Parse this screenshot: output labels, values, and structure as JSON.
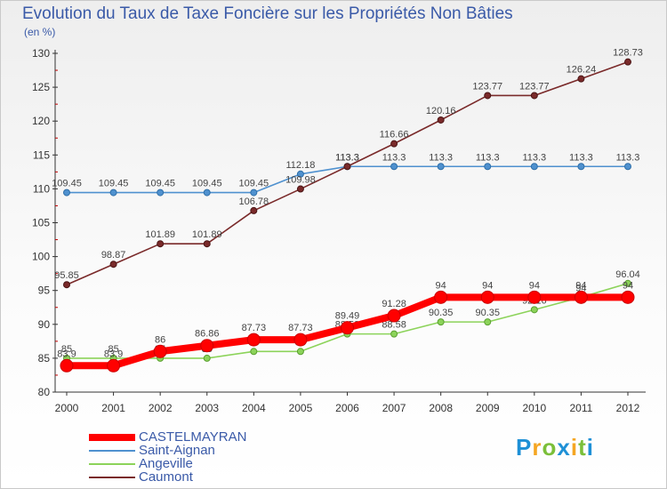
{
  "chart_data": {
    "type": "line",
    "title": "Evolution du Taux de Taxe Foncière sur les Propriétés Non Bâties",
    "unit_label": "(en %)",
    "x": [
      2000,
      2001,
      2002,
      2003,
      2004,
      2005,
      2006,
      2007,
      2008,
      2009,
      2010,
      2011,
      2012
    ],
    "ylim": [
      80,
      130
    ],
    "yticks": [
      80,
      85,
      90,
      95,
      100,
      105,
      110,
      115,
      120,
      125,
      130
    ],
    "grid": false,
    "legend_position": "bottom-left",
    "series": [
      {
        "name": "CASTELMAYRAN",
        "color": "#ff0000",
        "values": [
          83.9,
          83.9,
          86,
          86.86,
          87.73,
          87.73,
          89.49,
          91.28,
          94,
          94,
          94,
          94,
          94
        ],
        "labels": [
          "83.9",
          "83.9",
          "86",
          "86.86",
          "87.73",
          "87.73",
          "89.49",
          "91.28",
          "94",
          "94",
          "94",
          "94",
          "94"
        ]
      },
      {
        "name": "Saint-Aignan",
        "color": "#4f91cf",
        "values": [
          109.45,
          109.45,
          109.45,
          109.45,
          109.45,
          112.18,
          113.3,
          113.3,
          113.3,
          113.3,
          113.3,
          113.3,
          113.3
        ],
        "labels": [
          "109.45",
          "109.45",
          "109.45",
          "109.45",
          "109.45",
          "112.18",
          "113.3",
          "113.3",
          "113.3",
          "113.3",
          "113.3",
          "113.3",
          "113.3"
        ]
      },
      {
        "name": "Angeville",
        "color": "#8cd35a",
        "values": [
          85,
          85,
          85,
          85,
          86,
          86,
          88.58,
          88.58,
          90.35,
          90.35,
          92.16,
          94,
          96.04
        ],
        "labels": [
          "85",
          "85",
          "85",
          "85",
          "86",
          "86",
          "88.58",
          "88.58",
          "90.35",
          "90.35",
          "92.16",
          "94",
          "96.04"
        ]
      },
      {
        "name": "Caumont",
        "color": "#7a2a2a",
        "values": [
          95.85,
          98.87,
          101.89,
          101.89,
          106.78,
          109.98,
          113.3,
          116.66,
          120.16,
          123.77,
          123.77,
          126.24,
          128.73
        ],
        "labels": [
          "95.85",
          "98.87",
          "101.89",
          "101.89",
          "106.78",
          "109.98",
          "113.3",
          "116.66",
          "120.16",
          "123.77",
          "123.77",
          "126.24",
          "128.73"
        ]
      }
    ]
  },
  "brand": {
    "letters": [
      "P",
      "r",
      "o",
      "x",
      "i",
      "t",
      "i"
    ],
    "colors": [
      "#1e90d6",
      "#f5a623",
      "#7bbf3a",
      "#1e90d6",
      "#f5a623",
      "#7bbf3a",
      "#1e90d6"
    ]
  }
}
